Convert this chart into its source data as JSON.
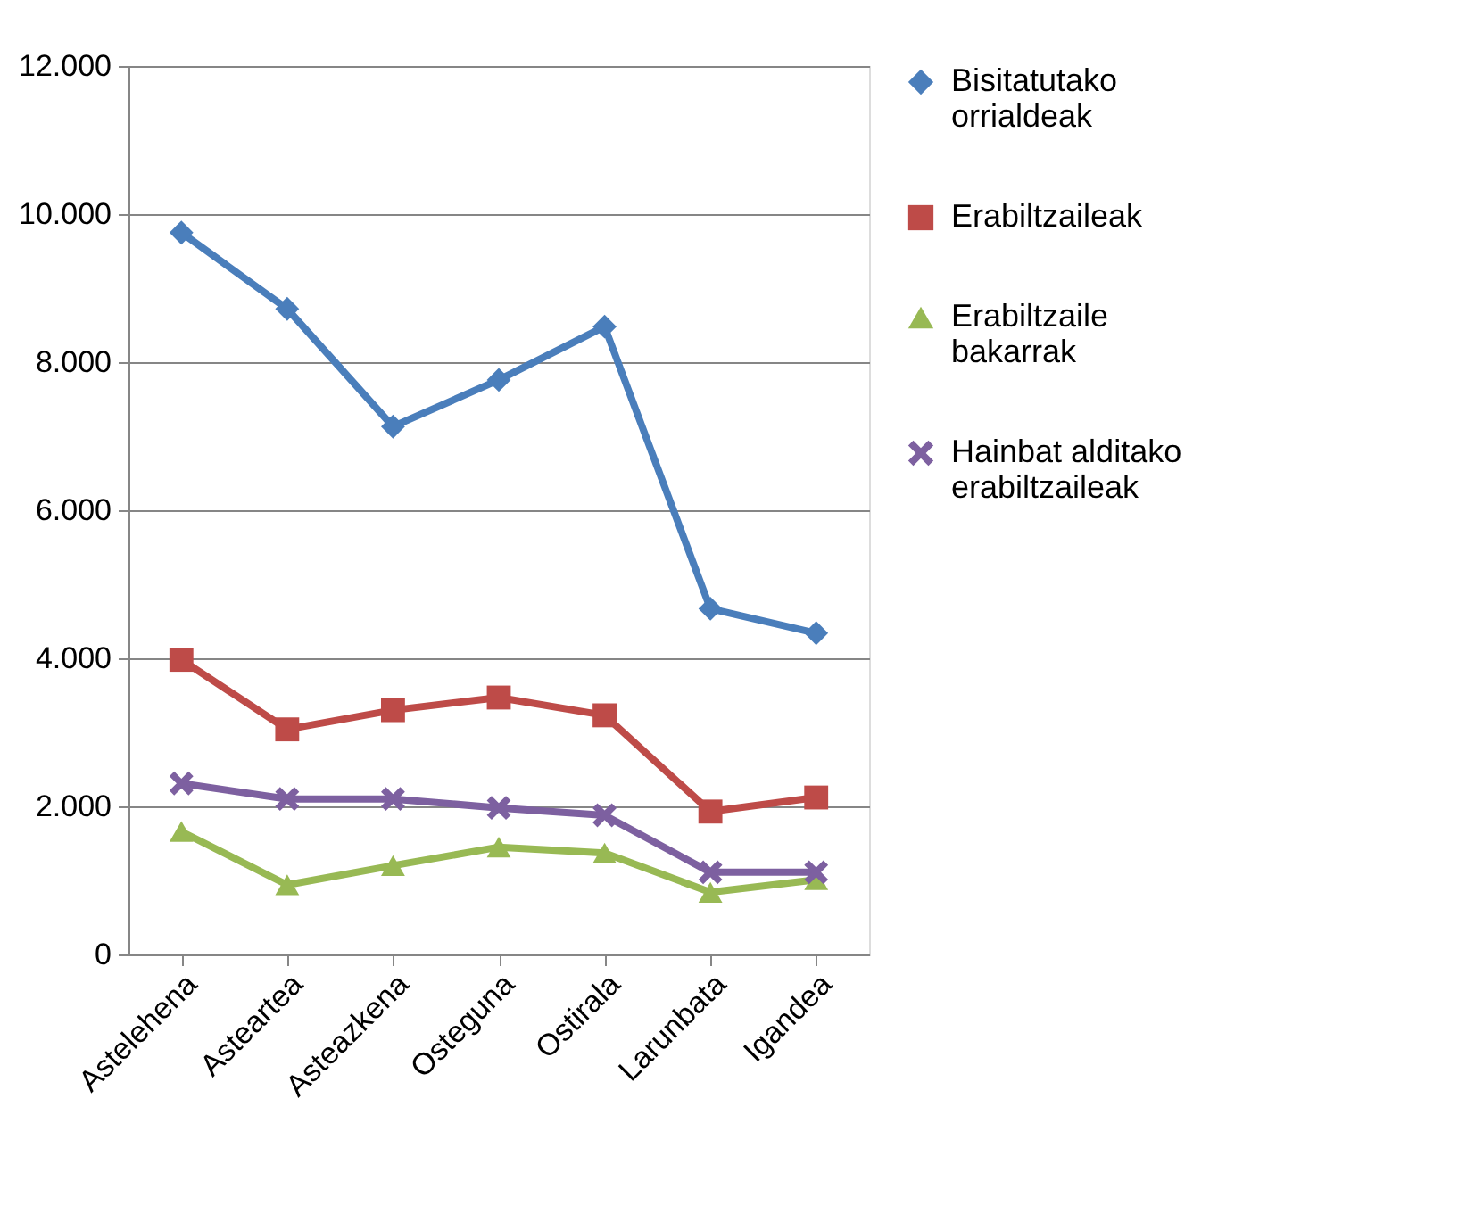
{
  "chart_data": {
    "type": "line",
    "categories": [
      "Astelehena",
      "Asteartea",
      "Asteazkena",
      "Osteguna",
      "Ostirala",
      "Larunbata",
      "Igandea"
    ],
    "series": [
      {
        "name": "Bisitatutako orrialdeak",
        "color": "#4a7ebb",
        "marker": "diamond",
        "values": [
          9750,
          8720,
          7130,
          7760,
          8480,
          4670,
          4340
        ]
      },
      {
        "name": "Erabiltzaileak",
        "color": "#be4b48",
        "marker": "square",
        "values": [
          3980,
          3040,
          3300,
          3470,
          3230,
          1930,
          2120
        ]
      },
      {
        "name": "Erabiltzaile bakarrak",
        "color": "#98b954",
        "marker": "triangle",
        "values": [
          1660,
          940,
          1200,
          1450,
          1370,
          840,
          1010
        ]
      },
      {
        "name": "Hainbat alditako erabiltzaileak",
        "color": "#7d60a0",
        "marker": "cross",
        "values": [
          2310,
          2100,
          2100,
          1980,
          1880,
          1110,
          1110
        ]
      }
    ],
    "ylim": [
      0,
      12000
    ],
    "yticks": [
      {
        "value": 0,
        "label": "0"
      },
      {
        "value": 2000,
        "label": "2.000"
      },
      {
        "value": 4000,
        "label": "4.000"
      },
      {
        "value": 6000,
        "label": "6.000"
      },
      {
        "value": 8000,
        "label": "8.000"
      },
      {
        "value": 10000,
        "label": "10.000"
      },
      {
        "value": 12000,
        "label": "12.000"
      }
    ],
    "grid": "y",
    "legend": "right",
    "line_style": "solid"
  }
}
